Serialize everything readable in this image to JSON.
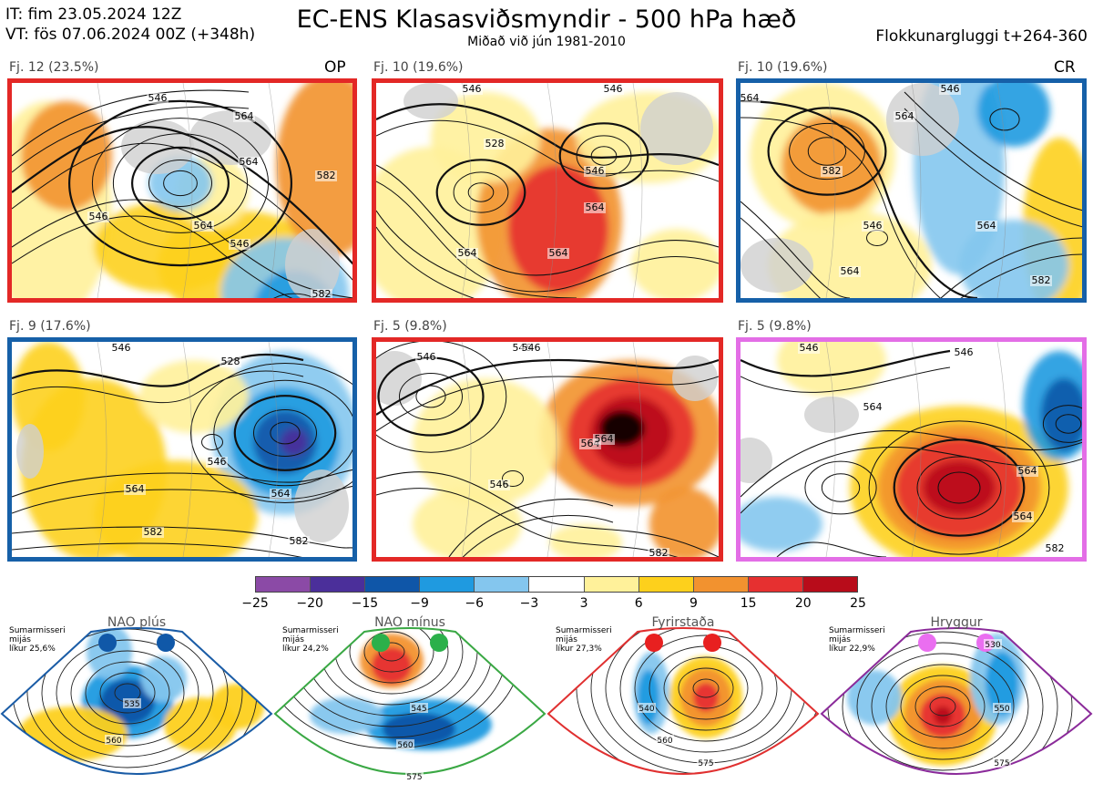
{
  "header": {
    "init_time": "IT: fim 23.05.2024 12Z",
    "valid_time": "VT: fös 07.06.2024 00Z  (+348h)",
    "title": "EC-ENS Klasasviðsmyndir - 500 hPa hæð",
    "subtitle": "Miðað við jún 1981-2010",
    "window": "Flokkunargluggi t+264-360"
  },
  "panels": [
    {
      "label": "Fj. 12 (23.5%)",
      "tag": "OP",
      "border_color": "#e32826",
      "contour_labels": [
        "546",
        "546",
        "564",
        "564",
        "546",
        "564",
        "546",
        "564",
        "582",
        "582"
      ]
    },
    {
      "label": "Fj. 10 (19.6%)",
      "tag": "",
      "border_color": "#e32826",
      "contour_labels": [
        "546",
        "528",
        "546",
        "564",
        "564",
        "564",
        "546"
      ]
    },
    {
      "label": "Fj. 10 (19.6%)",
      "tag": "CR",
      "border_color": "#1660a8",
      "contour_labels": [
        "564",
        "564",
        "582",
        "546",
        "564",
        "564",
        "546",
        "582"
      ]
    },
    {
      "label": "Fj. 9 (17.6%)",
      "tag": "",
      "border_color": "#1660a8",
      "contour_labels": [
        "546",
        "528",
        "546",
        "564",
        "564",
        "582",
        "582"
      ]
    },
    {
      "label": "Fj. 5 (9.8%)",
      "tag": "",
      "border_color": "#e32826",
      "contour_labels": [
        "546",
        "546",
        "546",
        "564",
        "564",
        "582",
        "546"
      ]
    },
    {
      "label": "Fj. 5 (9.8%)",
      "tag": "",
      "border_color": "#e36ee6",
      "contour_labels": [
        "546",
        "564",
        "546",
        "564",
        "564",
        "582"
      ]
    }
  ],
  "colorbar": {
    "ticks": [
      "−25",
      "−20",
      "−15",
      "−9",
      "−6",
      "−3",
      "3",
      "6",
      "9",
      "15",
      "20",
      "25"
    ],
    "colors": [
      "#8b4aa6",
      "#4b2f9a",
      "#0f56a8",
      "#1f9ae0",
      "#84c6ee",
      "#ffffff",
      "#fff19a",
      "#fdd01c",
      "#f2922f",
      "#e63030",
      "#b80c1a"
    ]
  },
  "regimes": [
    {
      "title": "NAO plús",
      "note": "Sumarmisseri\nmijás\nlíkur 25,6%",
      "outline_color": "#1a5ca6",
      "dot_color": "#1058a8",
      "contour_labels": [
        "535",
        "560"
      ]
    },
    {
      "title": "NAO mínus",
      "note": "Sumarmisseri\nmijás\nlíkur 24,2%",
      "outline_color": "#3aa844",
      "dot_color": "#2bb04a",
      "contour_labels": [
        "545",
        "560",
        "575"
      ]
    },
    {
      "title": "Fyrirstaða",
      "note": "Sumarmisseri\nmijás\nlíkur 27,3%",
      "outline_color": "#e03030",
      "dot_color": "#e82020",
      "contour_labels": [
        "540",
        "560",
        "575"
      ]
    },
    {
      "title": "Hryggur",
      "note": "Sumarmisseri\nmijás\nlíkur 22,9%",
      "outline_color": "#8b2b9a",
      "dot_color": "#ea6ef0",
      "contour_labels": [
        "530",
        "550",
        "575"
      ]
    }
  ]
}
